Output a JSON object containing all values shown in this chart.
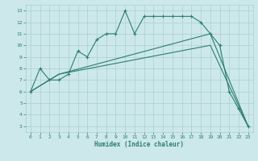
{
  "xlabel": "Humidex (Indice chaleur)",
  "line1_x": [
    0,
    1,
    2,
    3,
    4,
    5,
    6,
    7,
    8,
    9,
    10,
    11,
    12,
    13,
    14,
    15,
    16,
    17,
    18,
    19,
    20,
    21,
    22,
    23
  ],
  "line1_y": [
    6,
    8,
    7,
    7,
    7.5,
    9.5,
    9,
    10.5,
    11,
    11,
    13,
    11,
    12.5,
    12.5,
    12.5,
    12.5,
    12.5,
    12.5,
    12,
    11,
    10,
    6,
    4.5,
    3
  ],
  "line2_x": [
    0,
    3,
    19,
    23
  ],
  "line2_y": [
    6,
    7.5,
    11,
    3
  ],
  "line3_x": [
    0,
    3,
    19,
    23
  ],
  "line3_y": [
    6,
    7.5,
    10,
    3
  ],
  "line_color": "#2e7d6e",
  "bg_color": "#cce8ea",
  "grid_color": "#aacfcf",
  "ylim": [
    2.5,
    13.5
  ],
  "xlim": [
    -0.5,
    23.5
  ],
  "yticks": [
    3,
    4,
    5,
    6,
    7,
    8,
    9,
    10,
    11,
    12,
    13
  ],
  "xticks": [
    0,
    1,
    2,
    3,
    4,
    5,
    6,
    7,
    8,
    9,
    10,
    11,
    12,
    13,
    14,
    15,
    16,
    17,
    18,
    19,
    20,
    21,
    22,
    23
  ]
}
